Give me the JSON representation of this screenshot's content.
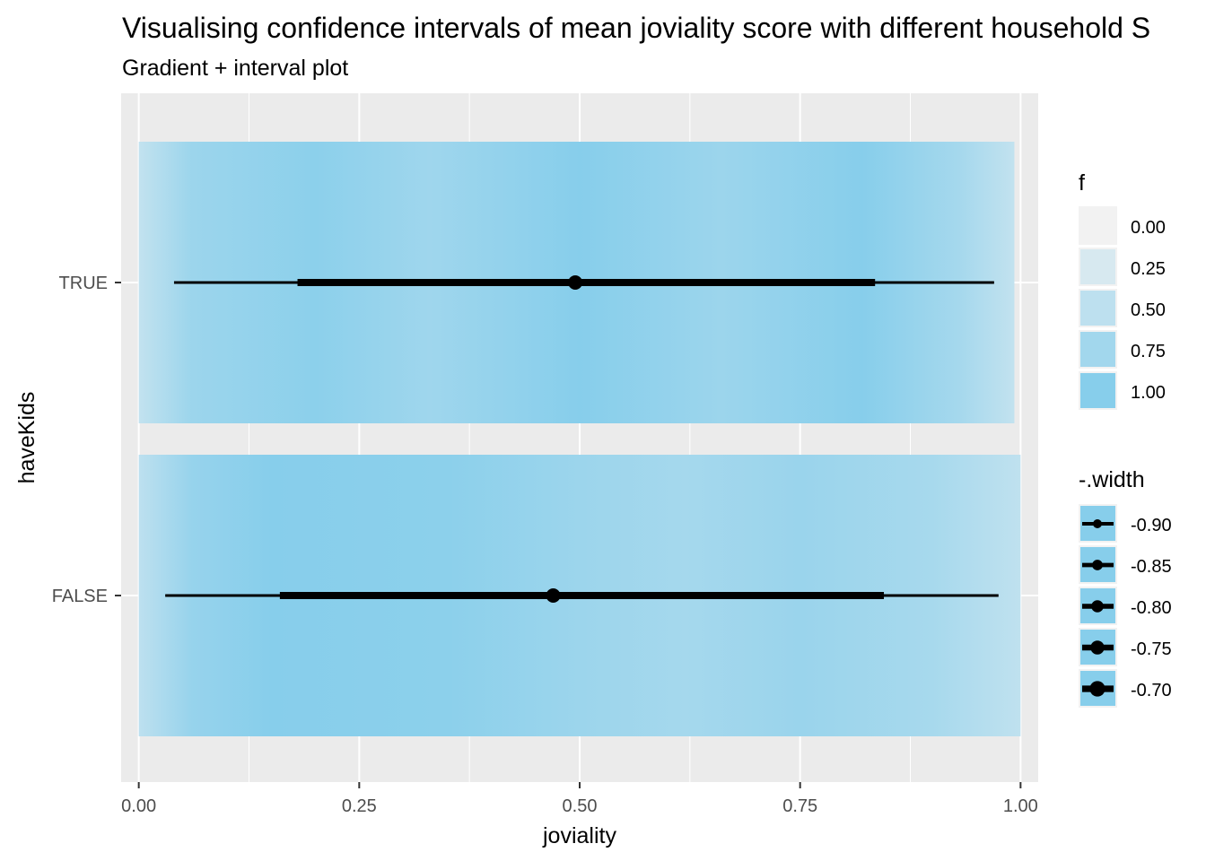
{
  "chart_data": {
    "type": "interval",
    "title": "Visualising confidence intervals of mean joviality score with different household S",
    "subtitle": "Gradient + interval plot",
    "xlabel": "joviality",
    "ylabel": "haveKids",
    "xlim": [
      -0.02,
      1.02
    ],
    "x_ticks": [
      "0.00",
      "0.25",
      "0.50",
      "0.75",
      "1.00"
    ],
    "x_tick_values": [
      0.0,
      0.25,
      0.5,
      0.75,
      1.0
    ],
    "categories": [
      "TRUE",
      "FALSE"
    ],
    "gradient_color": "#87ceeb",
    "panel_background": "#ebebeb",
    "grid": true,
    "groups": [
      {
        "category": "TRUE",
        "gradient_range": [
          0.0,
          0.993
        ],
        "point": 0.495,
        "interval_thick": [
          0.18,
          0.835
        ],
        "interval_thin": [
          0.04,
          0.97
        ],
        "gradient_stops": [
          {
            "x": 0.0,
            "f": 0.45
          },
          {
            "x": 0.06,
            "f": 0.8
          },
          {
            "x": 0.2,
            "f": 0.95
          },
          {
            "x": 0.33,
            "f": 0.78
          },
          {
            "x": 0.5,
            "f": 1.0
          },
          {
            "x": 0.66,
            "f": 0.8
          },
          {
            "x": 0.82,
            "f": 1.0
          },
          {
            "x": 0.93,
            "f": 0.72
          },
          {
            "x": 0.993,
            "f": 0.45
          }
        ]
      },
      {
        "category": "FALSE",
        "gradient_range": [
          0.0,
          1.0
        ],
        "point": 0.47,
        "interval_thick": [
          0.16,
          0.845
        ],
        "interval_thin": [
          0.03,
          0.975
        ],
        "gradient_stops": [
          {
            "x": 0.0,
            "f": 0.5
          },
          {
            "x": 0.06,
            "f": 0.85
          },
          {
            "x": 0.15,
            "f": 1.0
          },
          {
            "x": 0.35,
            "f": 0.95
          },
          {
            "x": 0.5,
            "f": 0.8
          },
          {
            "x": 0.62,
            "f": 0.72
          },
          {
            "x": 0.75,
            "f": 0.82
          },
          {
            "x": 0.9,
            "f": 0.7
          },
          {
            "x": 1.0,
            "f": 0.48
          }
        ]
      }
    ],
    "legend_fill": {
      "title": "f",
      "items": [
        {
          "label": "0.00",
          "f": 0.0
        },
        {
          "label": "0.25",
          "f": 0.25
        },
        {
          "label": "0.50",
          "f": 0.5
        },
        {
          "label": "0.75",
          "f": 0.75
        },
        {
          "label": "1.00",
          "f": 1.0
        }
      ]
    },
    "legend_width": {
      "title": "-.width",
      "items": [
        {
          "label": "-0.90",
          "value": -0.9
        },
        {
          "label": "-0.85",
          "value": -0.85
        },
        {
          "label": "-0.80",
          "value": -0.8
        },
        {
          "label": "-0.75",
          "value": -0.75
        },
        {
          "label": "-0.70",
          "value": -0.7
        }
      ]
    },
    "legend_position": "right"
  }
}
